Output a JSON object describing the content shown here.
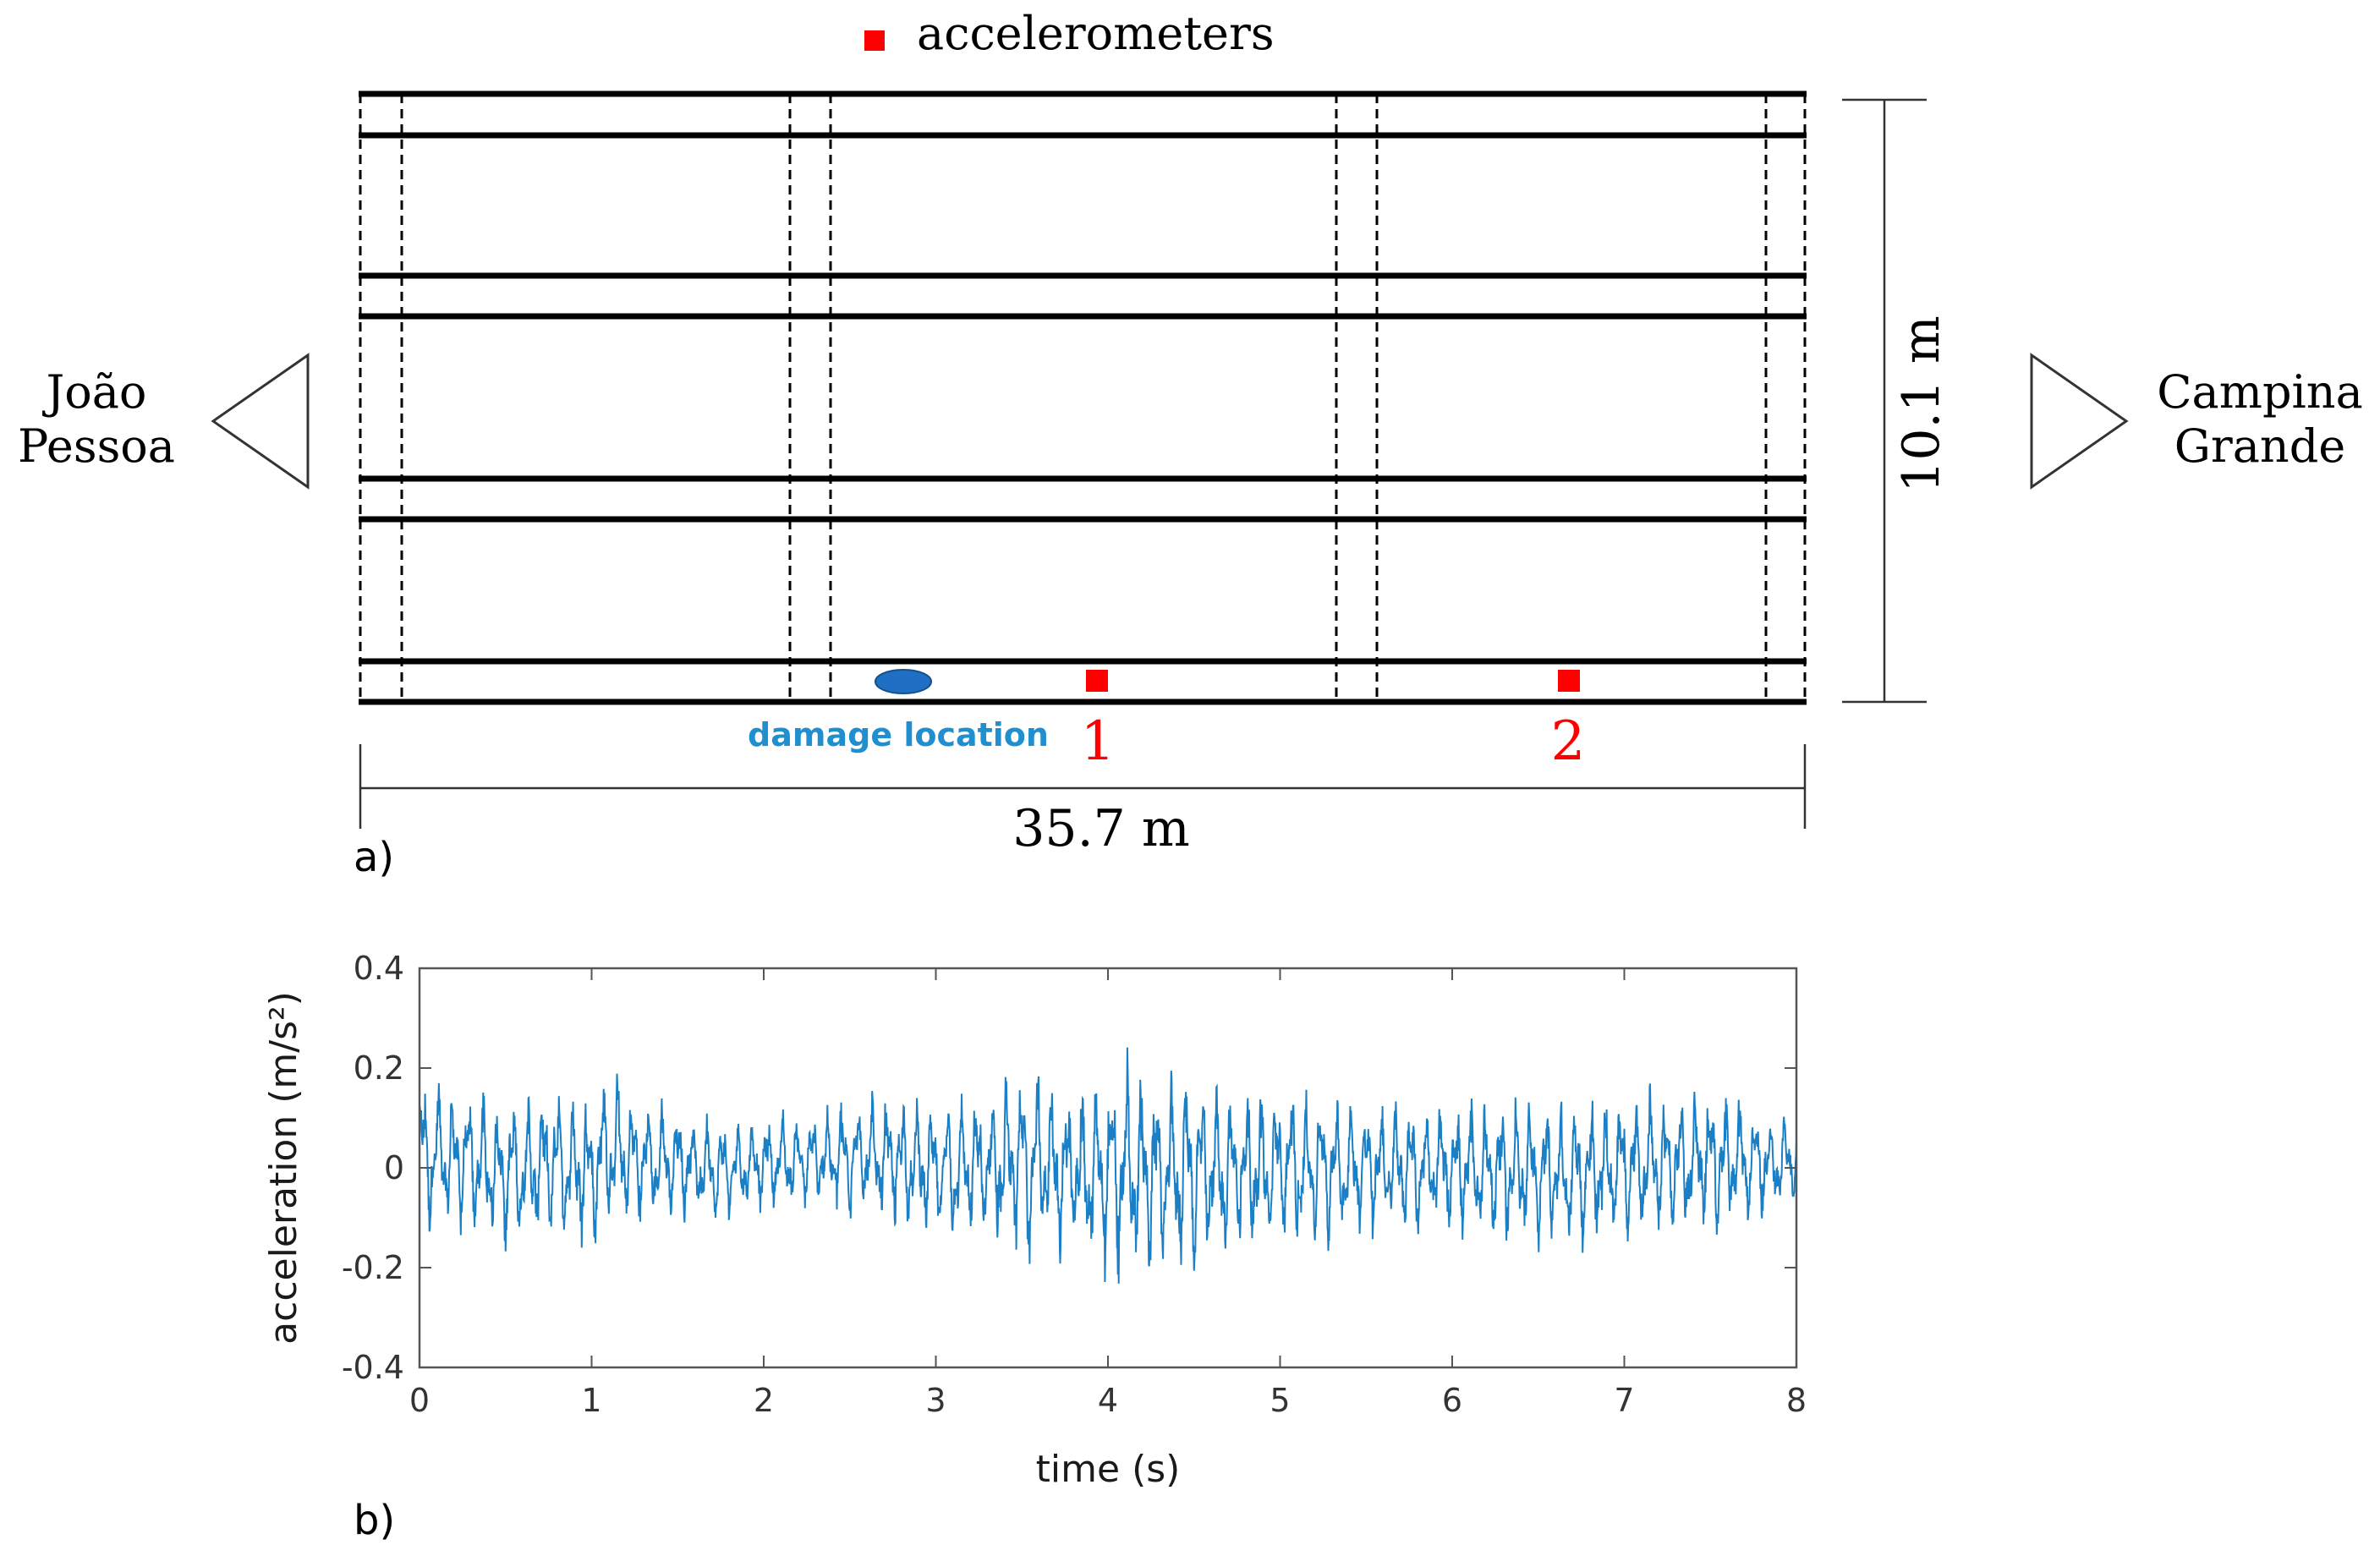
{
  "legend": {
    "label": "accelerometers"
  },
  "directions": {
    "left_line1": "João",
    "left_line2": "Pessoa",
    "right_line1": "Campina",
    "right_line2": "Grande"
  },
  "dimensions": {
    "width": "35.7 m",
    "height": "10.1 m"
  },
  "markers": {
    "damage_label": "damage location",
    "sensor1_label": "1",
    "sensor2_label": "2"
  },
  "panels": {
    "a": "a)",
    "b": "b)"
  },
  "colors": {
    "sensor": "#ff0000",
    "damage": "#1f6fc4",
    "signal": "#1a7fc4",
    "structure": "#000000"
  },
  "chart_data": {
    "type": "line",
    "title": "",
    "xlabel": "time (s)",
    "ylabel": "acceleration (m/s²)",
    "xlim": [
      0,
      8
    ],
    "ylim": [
      -0.4,
      0.4
    ],
    "xticks": [
      "0",
      "1",
      "2",
      "3",
      "4",
      "5",
      "6",
      "7",
      "8"
    ],
    "yticks": [
      "0.4",
      "0.2",
      "0",
      "-0.2",
      "-0.4"
    ],
    "grid": false,
    "series": [
      {
        "x": [
          0,
          0.25,
          0.5,
          0.75,
          1.0,
          1.1,
          1.25,
          1.5,
          1.75,
          2.0,
          2.25,
          2.5,
          2.75,
          3.0,
          3.25,
          3.5,
          3.6,
          3.75,
          4.0,
          4.1,
          4.25,
          4.4,
          4.5,
          4.75,
          5.0,
          5.25,
          5.5,
          5.75,
          6.0,
          6.25,
          6.5,
          6.75,
          7.0,
          7.25,
          7.5,
          7.75,
          8.0
        ],
        "upper": [
          0.22,
          0.18,
          0.17,
          0.2,
          0.19,
          0.24,
          0.17,
          0.15,
          0.12,
          0.12,
          0.13,
          0.16,
          0.17,
          0.16,
          0.18,
          0.24,
          0.26,
          0.2,
          0.24,
          0.26,
          0.22,
          0.25,
          0.24,
          0.2,
          0.2,
          0.18,
          0.16,
          0.16,
          0.17,
          0.17,
          0.18,
          0.17,
          0.18,
          0.18,
          0.2,
          0.15,
          0.13
        ],
        "lower": [
          -0.17,
          -0.15,
          -0.19,
          -0.18,
          -0.2,
          -0.17,
          -0.14,
          -0.13,
          -0.13,
          -0.1,
          -0.1,
          -0.12,
          -0.14,
          -0.17,
          -0.18,
          -0.22,
          -0.24,
          -0.22,
          -0.27,
          -0.28,
          -0.24,
          -0.26,
          -0.25,
          -0.22,
          -0.2,
          -0.18,
          -0.16,
          -0.16,
          -0.17,
          -0.18,
          -0.2,
          -0.2,
          -0.18,
          -0.17,
          -0.16,
          -0.14,
          -0.1
        ]
      }
    ]
  }
}
